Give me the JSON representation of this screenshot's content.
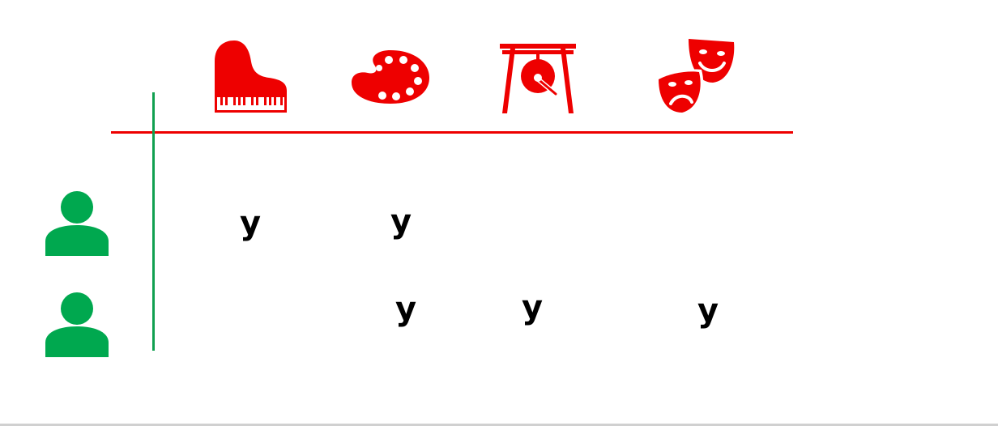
{
  "colors": {
    "activity_icons": "#ee0000",
    "person_icons": "#00a84f",
    "header_rule": "#ee0000",
    "row_rule": "#10a050",
    "marks": "#000000"
  },
  "columns": [
    {
      "icon": "piano-icon"
    },
    {
      "icon": "palette-icon"
    },
    {
      "icon": "gong-icon"
    },
    {
      "icon": "theater-masks-icon"
    }
  ],
  "rows": [
    {
      "icon": "person-icon",
      "cells": [
        "y",
        "y",
        "",
        ""
      ]
    },
    {
      "icon": "person-icon",
      "cells": [
        "",
        "y",
        "y",
        "y"
      ]
    }
  ]
}
